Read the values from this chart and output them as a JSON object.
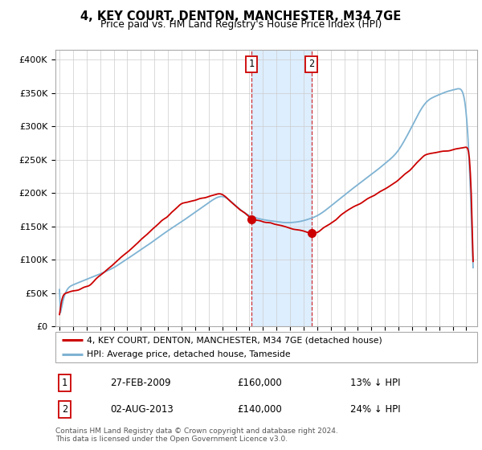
{
  "title": "4, KEY COURT, DENTON, MANCHESTER, M34 7GE",
  "subtitle": "Price paid vs. HM Land Registry's House Price Index (HPI)",
  "ylabel_ticks": [
    "£0",
    "£50K",
    "£100K",
    "£150K",
    "£200K",
    "£250K",
    "£300K",
    "£350K",
    "£400K"
  ],
  "ytick_vals": [
    0,
    50000,
    100000,
    150000,
    200000,
    250000,
    300000,
    350000,
    400000
  ],
  "ylim": [
    0,
    415000
  ],
  "xlim_start": 1994.7,
  "xlim_end": 2025.8,
  "red_line_color": "#cc0000",
  "blue_line_color": "#7fb3d3",
  "shaded_region_color": "#ddeeff",
  "marker1_x": 2009.15,
  "marker2_x": 2013.58,
  "marker1_price": 160000,
  "marker2_price": 140000,
  "legend_line1": "4, KEY COURT, DENTON, MANCHESTER, M34 7GE (detached house)",
  "legend_line2": "HPI: Average price, detached house, Tameside",
  "table_row1": [
    "1",
    "27-FEB-2009",
    "£160,000",
    "13% ↓ HPI"
  ],
  "table_row2": [
    "2",
    "02-AUG-2013",
    "£140,000",
    "24% ↓ HPI"
  ],
  "footnote": "Contains HM Land Registry data © Crown copyright and database right 2024.\nThis data is licensed under the Open Government Licence v3.0.",
  "background_color": "#ffffff",
  "grid_color": "#cccccc"
}
